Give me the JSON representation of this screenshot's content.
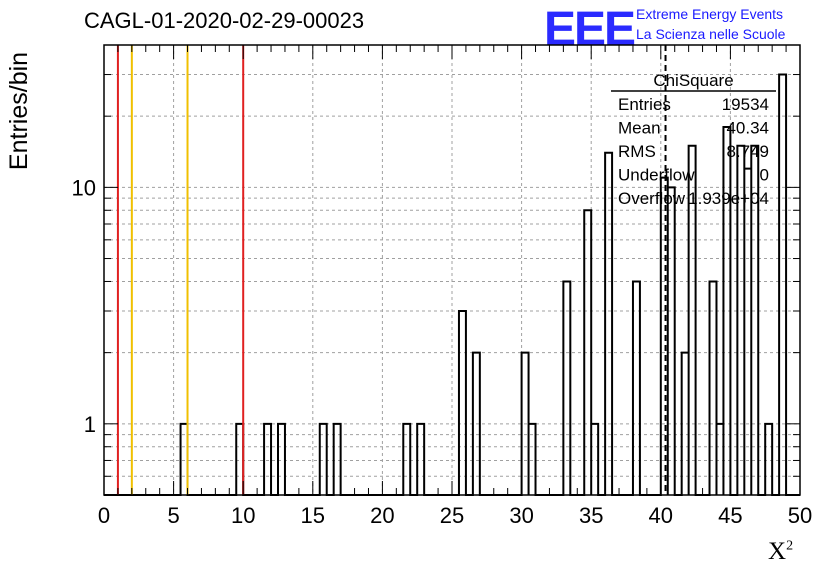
{
  "chart_data": {
    "type": "bar",
    "title": "CAGL-01-2020-02-29-00023",
    "xlabel": "X",
    "xlabel_sup": "2",
    "ylabel": "Entries/bin",
    "xlim": [
      0,
      50
    ],
    "ylog": true,
    "ylim": [
      0.5,
      40
    ],
    "bin_width": 0.5,
    "x_ticks": [
      0,
      5,
      10,
      15,
      20,
      25,
      30,
      35,
      40,
      45,
      50
    ],
    "y_ticks": [
      1,
      10
    ],
    "grid": true,
    "bins": [
      {
        "x": 5.5,
        "y": 1
      },
      {
        "x": 9.5,
        "y": 1
      },
      {
        "x": 11.5,
        "y": 1
      },
      {
        "x": 12.5,
        "y": 1
      },
      {
        "x": 15.5,
        "y": 1
      },
      {
        "x": 16.5,
        "y": 1
      },
      {
        "x": 21.5,
        "y": 1
      },
      {
        "x": 22.5,
        "y": 1
      },
      {
        "x": 25.5,
        "y": 3
      },
      {
        "x": 26.5,
        "y": 2
      },
      {
        "x": 30.0,
        "y": 2
      },
      {
        "x": 30.5,
        "y": 1
      },
      {
        "x": 33.0,
        "y": 4
      },
      {
        "x": 34.5,
        "y": 8
      },
      {
        "x": 35.0,
        "y": 1
      },
      {
        "x": 36.0,
        "y": 14
      },
      {
        "x": 38.0,
        "y": 4
      },
      {
        "x": 40.0,
        "y": 11
      },
      {
        "x": 40.5,
        "y": 10
      },
      {
        "x": 41.5,
        "y": 2
      },
      {
        "x": 42.0,
        "y": 15
      },
      {
        "x": 43.5,
        "y": 4
      },
      {
        "x": 44.0,
        "y": 1
      },
      {
        "x": 44.5,
        "y": 18
      },
      {
        "x": 45.5,
        "y": 15
      },
      {
        "x": 46.0,
        "y": 12
      },
      {
        "x": 46.5,
        "y": 15
      },
      {
        "x": 47.5,
        "y": 1
      },
      {
        "x": 48.5,
        "y": 30
      }
    ],
    "ref_lines": [
      {
        "x": 1.0,
        "color": "#e02020"
      },
      {
        "x": 2.0,
        "color": "#f0c000"
      },
      {
        "x": 6.0,
        "color": "#f0c000"
      },
      {
        "x": 10.0,
        "color": "#e02020"
      }
    ],
    "mean_line": {
      "x": 40.34,
      "color": "#000000",
      "style": "dashed"
    },
    "stats_box": {
      "title": "ChiSquare",
      "rows": [
        {
          "label": "Entries",
          "value": "19534"
        },
        {
          "label": "Mean",
          "value": "40.34"
        },
        {
          "label": "RMS",
          "value": "8.749"
        },
        {
          "label": "Underflow",
          "value": "0"
        },
        {
          "label": "Overflow",
          "value": "1.939e+04"
        }
      ]
    }
  },
  "logo": {
    "letters": "EEE",
    "line1": "Extreme Energy Events",
    "line2": "La Scienza nelle Scuole",
    "color": "#2a2aff"
  }
}
